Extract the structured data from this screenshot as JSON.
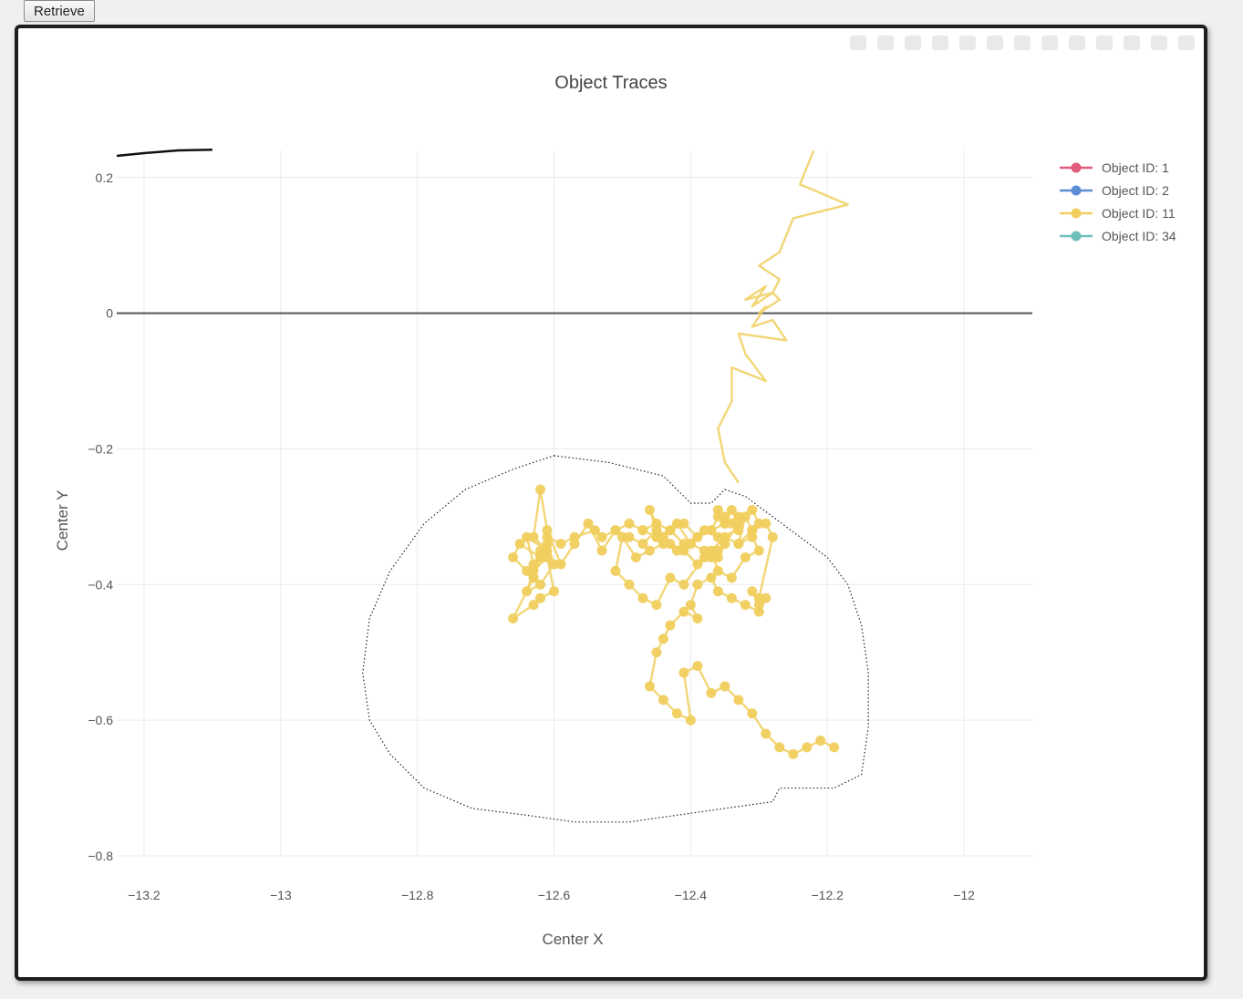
{
  "toolbar": {
    "retrieve_label": "Retrieve"
  },
  "modebar": {
    "icons": [
      "camera-icon",
      "zoom-icon",
      "pan-icon",
      "box-select-icon",
      "lasso-icon",
      "zoom-in-icon",
      "zoom-out-icon",
      "autoscale-icon",
      "reset-axes-icon",
      "spike-lines-icon",
      "hover-closest-icon",
      "hover-compare-icon",
      "plotly-logo-icon"
    ]
  },
  "chart_data": {
    "type": "scatter",
    "title": "Object Traces",
    "xlabel": "Center X",
    "ylabel": "Center Y",
    "xlim": [
      -13.24,
      -11.9
    ],
    "ylim": [
      -0.8,
      0.24
    ],
    "xticks": [
      -13.2,
      -13,
      -12.8,
      -12.6,
      -12.4,
      -12.2,
      -12
    ],
    "xtick_labels": [
      "−13.2",
      "−13",
      "−12.8",
      "−12.6",
      "−12.4",
      "−12.2",
      "−12"
    ],
    "yticks": [
      0.2,
      0,
      -0.2,
      -0.4,
      -0.6,
      -0.8
    ],
    "ytick_labels": [
      "0.2",
      "0",
      "−0.2",
      "−0.4",
      "−0.6",
      "−0.8"
    ],
    "grid": true,
    "legend_position": "top-right",
    "series": [
      {
        "name": "Object ID: 1",
        "color": "#e05a7a",
        "x": [],
        "y": []
      },
      {
        "name": "Object ID: 2",
        "color": "#5b8ed6",
        "x": [],
        "y": []
      },
      {
        "name": "Object ID: 11",
        "color": "#f0cf5e",
        "x": [
          -12.22,
          -12.24,
          -12.17,
          -12.25,
          -12.27,
          -12.3,
          -12.27,
          -12.28,
          -12.32,
          -12.29,
          -12.31,
          -12.28,
          -12.27,
          -12.3,
          -12.29,
          -12.31,
          -12.28,
          -12.26,
          -12.33,
          -12.32,
          -12.29,
          -12.34,
          -12.34,
          -12.36,
          -12.35,
          -12.33
        ],
        "y": [
          0.24,
          0.19,
          0.16,
          0.14,
          0.09,
          0.07,
          0.05,
          0.03,
          0.02,
          0.04,
          0.01,
          0.03,
          0.02,
          0.0,
          0.01,
          -0.02,
          -0.01,
          -0.04,
          -0.03,
          -0.06,
          -0.1,
          -0.08,
          -0.13,
          -0.17,
          -0.22,
          -0.25
        ],
        "markers": false
      },
      {
        "name": "Object ID: 11",
        "color": "#f0cf5e",
        "x": [
          -12.34,
          -12.36,
          -12.35,
          -12.33,
          -12.36,
          -12.38,
          -12.4,
          -12.42,
          -12.44,
          -12.46,
          -12.45,
          -12.47,
          -12.49,
          -12.51,
          -12.53,
          -12.55,
          -12.57,
          -12.59,
          -12.61,
          -12.62,
          -12.63,
          -12.61,
          -12.64,
          -12.63,
          -12.62,
          -12.65,
          -12.66,
          -12.64,
          -12.63,
          -12.62,
          -12.61,
          -12.6,
          -12.62,
          -12.64,
          -12.63,
          -12.61,
          -12.6,
          -12.62,
          -12.63,
          -12.66,
          -12.63,
          -12.62,
          -12.61,
          -12.59,
          -12.57,
          -12.54,
          -12.53,
          -12.51,
          -12.49,
          -12.47,
          -12.45,
          -12.43,
          -12.41,
          -12.39,
          -12.37,
          -12.36,
          -12.35,
          -12.34,
          -12.33,
          -12.35,
          -12.36,
          -12.38,
          -12.4,
          -12.42,
          -12.44,
          -12.46,
          -12.48,
          -12.5,
          -12.51,
          -12.49,
          -12.47,
          -12.45,
          -12.43,
          -12.41,
          -12.38,
          -12.36,
          -12.35,
          -12.37,
          -12.39,
          -12.41,
          -12.43,
          -12.45,
          -12.47,
          -12.45,
          -12.43,
          -12.41,
          -12.39,
          -12.37,
          -12.35,
          -12.33,
          -12.31,
          -12.3,
          -12.31,
          -12.32,
          -12.33,
          -12.35,
          -12.37,
          -12.36,
          -12.34,
          -12.32,
          -12.3,
          -12.31,
          -12.33,
          -12.31,
          -12.29,
          -12.28,
          -12.3,
          -12.31,
          -12.3,
          -12.29,
          -12.3,
          -12.32,
          -12.34,
          -12.36,
          -12.37,
          -12.39,
          -12.4,
          -12.39,
          -12.41,
          -12.43,
          -12.44,
          -12.45,
          -12.46,
          -12.44,
          -12.42,
          -12.4,
          -12.41,
          -12.39,
          -12.37,
          -12.35,
          -12.33,
          -12.31,
          -12.29,
          -12.27,
          -12.25,
          -12.23,
          -12.21,
          -12.19
        ],
        "y": [
          -0.31,
          -0.29,
          -0.3,
          -0.32,
          -0.33,
          -0.32,
          -0.34,
          -0.31,
          -0.33,
          -0.29,
          -0.32,
          -0.34,
          -0.33,
          -0.32,
          -0.35,
          -0.31,
          -0.34,
          -0.37,
          -0.32,
          -0.26,
          -0.33,
          -0.35,
          -0.33,
          -0.37,
          -0.36,
          -0.34,
          -0.36,
          -0.38,
          -0.39,
          -0.36,
          -0.34,
          -0.37,
          -0.4,
          -0.41,
          -0.38,
          -0.36,
          -0.41,
          -0.42,
          -0.43,
          -0.45,
          -0.39,
          -0.35,
          -0.33,
          -0.34,
          -0.33,
          -0.32,
          -0.33,
          -0.32,
          -0.31,
          -0.32,
          -0.33,
          -0.32,
          -0.31,
          -0.33,
          -0.32,
          -0.3,
          -0.31,
          -0.29,
          -0.31,
          -0.34,
          -0.36,
          -0.35,
          -0.34,
          -0.35,
          -0.34,
          -0.35,
          -0.36,
          -0.33,
          -0.38,
          -0.4,
          -0.42,
          -0.43,
          -0.39,
          -0.4,
          -0.36,
          -0.35,
          -0.34,
          -0.36,
          -0.37,
          -0.35,
          -0.34,
          -0.33,
          -0.32,
          -0.31,
          -0.32,
          -0.34,
          -0.33,
          -0.32,
          -0.31,
          -0.3,
          -0.29,
          -0.31,
          -0.32,
          -0.3,
          -0.34,
          -0.33,
          -0.35,
          -0.38,
          -0.39,
          -0.36,
          -0.35,
          -0.33,
          -0.34,
          -0.32,
          -0.31,
          -0.33,
          -0.42,
          -0.41,
          -0.43,
          -0.42,
          -0.44,
          -0.43,
          -0.42,
          -0.41,
          -0.39,
          -0.4,
          -0.43,
          -0.45,
          -0.44,
          -0.46,
          -0.48,
          -0.5,
          -0.55,
          -0.57,
          -0.59,
          -0.6,
          -0.53,
          -0.52,
          -0.56,
          -0.55,
          -0.57,
          -0.59,
          -0.62,
          -0.64,
          -0.65,
          -0.64,
          -0.63,
          -0.64
        ],
        "markers": true
      },
      {
        "name": "Object ID: 34",
        "color": "#6fbfba",
        "x": [],
        "y": []
      }
    ],
    "reference_lines": [
      {
        "type": "horizontal",
        "y": 0,
        "color": "#555555"
      }
    ],
    "boundary": {
      "style": "dotted",
      "color": "#222222",
      "x": [
        -12.6,
        -12.52,
        -12.44,
        -12.4,
        -12.37,
        -12.35,
        -12.32,
        -12.28,
        -12.24,
        -12.2,
        -12.17,
        -12.15,
        -12.14,
        -12.14,
        -12.15,
        -12.19,
        -12.23,
        -12.27,
        -12.28,
        -12.35,
        -12.42,
        -12.49,
        -12.57,
        -12.64,
        -12.72,
        -12.79,
        -12.84,
        -12.87,
        -12.88,
        -12.87,
        -12.84,
        -12.79,
        -12.73,
        -12.66,
        -12.6
      ],
      "y": [
        -0.21,
        -0.22,
        -0.24,
        -0.28,
        -0.28,
        -0.26,
        -0.27,
        -0.3,
        -0.33,
        -0.36,
        -0.4,
        -0.46,
        -0.53,
        -0.61,
        -0.68,
        -0.7,
        -0.7,
        -0.7,
        -0.72,
        -0.73,
        -0.74,
        -0.75,
        -0.75,
        -0.74,
        -0.73,
        -0.7,
        -0.65,
        -0.6,
        -0.53,
        -0.45,
        -0.38,
        -0.31,
        -0.26,
        -0.23,
        -0.21
      ]
    },
    "partial_black_trace": {
      "color": "#111111",
      "x": [
        -13.24,
        -13.2,
        -13.15,
        -13.1
      ],
      "y": [
        0.232,
        0.236,
        0.24,
        0.241
      ]
    }
  }
}
